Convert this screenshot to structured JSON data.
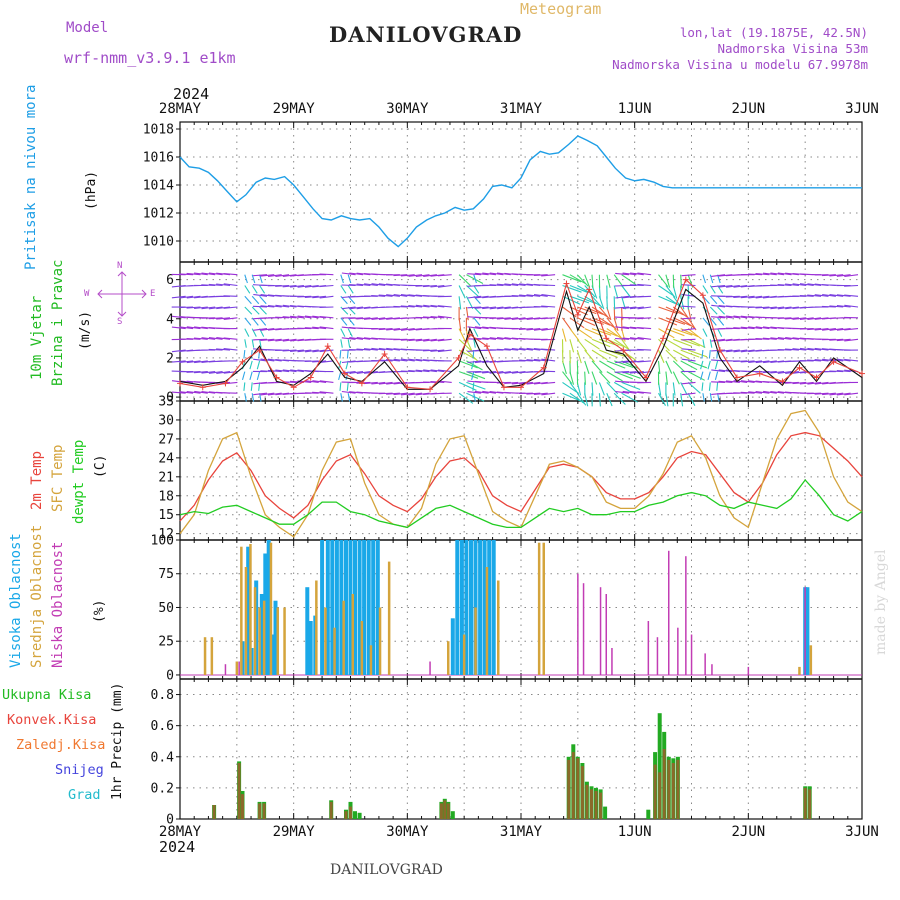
{
  "header": {
    "model_label": "Model",
    "model_name": "wrf-nmm_v3.9.1 e1km",
    "station": "DANILOVGRAD",
    "chart_kind": "Meteogram",
    "lonlat": "lon,lat (19.1875E, 42.5N)",
    "altitude": "Nadmorska Visina 53m",
    "model_altitude": "Nadmorska Visina u modelu 67.9978m",
    "year_top": "2024",
    "year_bottom": "2024",
    "footer_station": "DANILOVGRAD",
    "watermark": "made by Angel"
  },
  "colors": {
    "pressure": "#1e9ee6",
    "wind_label": "#22bb22",
    "temp2m": "#e8443c",
    "sfc": "#d4a43c",
    "dewpt": "#22cc22",
    "cloud_high": "#1aa8e8",
    "cloud_mid": "#d4a43c",
    "cloud_low": "#c23cb4",
    "rain_total": "#22bb22",
    "rain_conv": "#e8443c",
    "rain_frz": "#f07830",
    "snow": "#4444dd",
    "hail": "#22bbcc",
    "compass": "#b44cc8"
  },
  "dates": [
    "28MAY",
    "29MAY",
    "30MAY",
    "31MAY",
    "1JUN",
    "2JUN",
    "3JUN"
  ],
  "compass": {
    "n": "N",
    "s": "S",
    "w": "W",
    "e": "E"
  },
  "chart_data": [
    {
      "type": "line",
      "panel": "pressure",
      "ylabel_main": "Pritisak na nivou mora",
      "ylabel_unit": "(hPa)",
      "ylim": [
        1008.5,
        1018.5
      ],
      "yticks": [
        "1010",
        "1012",
        "1014",
        "1016",
        "1018"
      ],
      "grid": true,
      "x_days": [
        0,
        0.08,
        0.17,
        0.25,
        0.33,
        0.42,
        0.5,
        0.58,
        0.67,
        0.75,
        0.83,
        0.92,
        1.0,
        1.08,
        1.17,
        1.25,
        1.33,
        1.42,
        1.5,
        1.58,
        1.67,
        1.75,
        1.83,
        1.92,
        2.0,
        2.08,
        2.17,
        2.25,
        2.33,
        2.42,
        2.5,
        2.58,
        2.67,
        2.75,
        2.83,
        2.92,
        3.0,
        3.08,
        3.17,
        3.25,
        3.33,
        3.42,
        3.5,
        3.58,
        3.67,
        3.75,
        3.83,
        3.92,
        4.0,
        4.08,
        4.17,
        4.25,
        4.33,
        4.42,
        4.5,
        4.58,
        4.67,
        4.75,
        4.83,
        4.92,
        5.0,
        5.08,
        5.17,
        5.25,
        5.33,
        5.42,
        5.5,
        5.58,
        5.67,
        5.75,
        5.83,
        5.92,
        6.0
      ],
      "values": [
        1016.0,
        1015.3,
        1015.2,
        1014.9,
        1014.3,
        1013.5,
        1012.8,
        1013.3,
        1014.2,
        1014.5,
        1014.4,
        1014.6,
        1014.0,
        1013.2,
        1012.3,
        1011.6,
        1011.5,
        1011.8,
        1011.6,
        1011.5,
        1011.6,
        1011.0,
        1010.2,
        1009.6,
        1010.2,
        1011.0,
        1011.5,
        1011.8,
        1012.0,
        1012.4,
        1012.2,
        1012.3,
        1013.0,
        1013.9,
        1014.0,
        1013.8,
        1014.5,
        1015.8,
        1016.4,
        1016.2,
        1016.3,
        1016.9,
        1017.5,
        1017.2,
        1016.8,
        1016.0,
        1015.2,
        1014.5,
        1014.3,
        1014.4,
        1014.2,
        1013.9,
        1013.8,
        1013.8,
        1013.8,
        1013.8,
        1013.8,
        1013.8,
        1013.8,
        1013.8,
        1013.8,
        1013.8,
        1013.8,
        1013.8,
        1013.8,
        1013.8,
        1013.8,
        1013.8,
        1013.8,
        1013.8,
        1013.8,
        1013.8,
        1013.8
      ]
    },
    {
      "type": "line",
      "panel": "wind",
      "ylabel_main": "10m Vjetar",
      "ylabel_sub": "Brzina i Pravac",
      "ylabel_unit": "(m/s)",
      "ylim": [
        -0.2,
        6.9
      ],
      "yticks": [
        "0",
        "2",
        "4",
        "6"
      ],
      "grid": true,
      "series": [
        {
          "name": "speed",
          "x_days": [
            0,
            0.2,
            0.4,
            0.55,
            0.7,
            0.85,
            1.0,
            1.15,
            1.3,
            1.45,
            1.6,
            1.8,
            2.0,
            2.2,
            2.45,
            2.55,
            2.7,
            2.85,
            3.0,
            3.2,
            3.4,
            3.5,
            3.6,
            3.75,
            3.9,
            4.1,
            4.25,
            4.45,
            4.6,
            4.75,
            4.9,
            5.1,
            5.3,
            5.45,
            5.6,
            5.75,
            6.0
          ],
          "values": [
            0.8,
            0.6,
            0.8,
            1.5,
            2.6,
            0.8,
            0.6,
            1.2,
            2.2,
            1.0,
            0.8,
            1.8,
            0.4,
            0.4,
            1.6,
            3.5,
            1.6,
            0.5,
            0.6,
            1.2,
            5.4,
            3.4,
            4.6,
            2.4,
            2.2,
            0.8,
            2.5,
            5.5,
            4.8,
            2.0,
            0.8,
            1.6,
            0.6,
            1.8,
            0.8,
            2.0,
            1.0
          ]
        },
        {
          "name": "gust",
          "x_days": [
            0,
            0.2,
            0.4,
            0.55,
            0.7,
            0.85,
            1.0,
            1.15,
            1.3,
            1.45,
            1.6,
            1.8,
            2.0,
            2.2,
            2.45,
            2.55,
            2.7,
            2.85,
            3.0,
            3.2,
            3.4,
            3.5,
            3.6,
            3.75,
            3.9,
            4.1,
            4.25,
            4.45,
            4.6,
            4.75,
            4.9,
            5.1,
            5.3,
            5.45,
            5.6,
            5.75,
            6.0
          ],
          "values": [
            0.7,
            0.5,
            0.7,
            1.8,
            2.4,
            1.0,
            0.5,
            1.0,
            2.6,
            1.2,
            0.7,
            2.2,
            0.5,
            0.4,
            2.0,
            3.2,
            2.6,
            0.5,
            0.5,
            1.5,
            5.8,
            4.2,
            5.5,
            3.0,
            2.4,
            1.0,
            3.0,
            6.0,
            5.2,
            2.4,
            1.0,
            1.2,
            0.8,
            1.5,
            1.0,
            1.8,
            1.2
          ]
        }
      ]
    },
    {
      "type": "line",
      "panel": "temperature",
      "ylabel_2m": "2m Temp",
      "ylabel_sfc": "SFC Temp",
      "ylabel_dew": "dewpt Temp",
      "ylabel_unit": "(C)",
      "ylim": [
        11,
        33
      ],
      "yticks": [
        "12",
        "15",
        "18",
        "21",
        "24",
        "27",
        "30",
        "33"
      ],
      "grid": true,
      "x_days": [
        0,
        0.125,
        0.25,
        0.375,
        0.5,
        0.625,
        0.75,
        0.875,
        1.0,
        1.125,
        1.25,
        1.375,
        1.5,
        1.625,
        1.75,
        1.875,
        2.0,
        2.125,
        2.25,
        2.375,
        2.5,
        2.625,
        2.75,
        2.875,
        3.0,
        3.125,
        3.25,
        3.375,
        3.5,
        3.625,
        3.75,
        3.875,
        4.0,
        4.125,
        4.25,
        4.375,
        4.5,
        4.625,
        4.75,
        4.875,
        5.0,
        5.125,
        5.25,
        5.375,
        5.5,
        5.625,
        5.75,
        5.875,
        6.0
      ],
      "series": [
        {
          "name": "2m Temp",
          "values": [
            14.0,
            16.5,
            20.5,
            23.5,
            24.8,
            22.0,
            18.0,
            16.0,
            14.5,
            16.5,
            20.5,
            23.5,
            24.5,
            21.5,
            18.0,
            16.5,
            15.5,
            17.5,
            21.0,
            23.5,
            24.0,
            22.0,
            18.0,
            16.5,
            15.5,
            19.0,
            22.5,
            23.0,
            22.5,
            21.0,
            18.5,
            17.5,
            17.5,
            18.5,
            21.0,
            24.0,
            25.0,
            24.5,
            21.5,
            18.5,
            17.0,
            20.0,
            24.5,
            27.5,
            28.0,
            27.5,
            25.5,
            23.5,
            21.0
          ]
        },
        {
          "name": "SFC Temp",
          "values": [
            12.0,
            15.0,
            22.0,
            27.0,
            28.0,
            21.0,
            15.0,
            13.0,
            11.5,
            15.0,
            22.0,
            26.5,
            27.0,
            20.0,
            15.0,
            13.5,
            13.0,
            16.0,
            23.0,
            27.0,
            27.5,
            21.5,
            15.5,
            14.0,
            13.0,
            18.0,
            23.0,
            23.5,
            22.5,
            21.0,
            17.0,
            16.0,
            16.0,
            18.0,
            21.5,
            26.5,
            27.5,
            24.0,
            18.0,
            14.5,
            13.0,
            20.0,
            27.0,
            31.0,
            31.5,
            28.0,
            21.0,
            17.0,
            15.5
          ]
        },
        {
          "name": "dewpt Temp",
          "values": [
            15.0,
            15.5,
            15.2,
            16.2,
            16.5,
            15.5,
            14.5,
            13.5,
            13.5,
            15.0,
            17.0,
            17.0,
            15.5,
            15.0,
            14.0,
            13.5,
            13.0,
            14.5,
            16.0,
            16.5,
            15.5,
            14.5,
            13.5,
            13.0,
            13.0,
            14.5,
            16.0,
            15.5,
            16.0,
            15.0,
            15.0,
            15.5,
            15.5,
            16.5,
            17.0,
            18.0,
            18.5,
            18.0,
            16.5,
            16.0,
            17.0,
            16.5,
            16.0,
            17.5,
            20.5,
            18.0,
            15.0,
            14.0,
            15.5
          ]
        }
      ]
    },
    {
      "type": "bar",
      "panel": "clouds",
      "ylabel_high": "Visoka Oblacnost",
      "ylabel_mid": "Srednja Oblacnost",
      "ylabel_low": "Niska Oblacnost",
      "ylabel_unit": "(%)",
      "ylim": [
        -3,
        100
      ],
      "yticks": [
        "0",
        "25",
        "50",
        "75",
        "100"
      ],
      "grid": true,
      "series": [
        {
          "name": "Visoka",
          "x_days": [
            0.55,
            0.6,
            0.63,
            0.67,
            0.72,
            0.75,
            0.78,
            0.81,
            0.84,
            1.12,
            1.15,
            1.19,
            1.25,
            1.3,
            1.34,
            1.38,
            1.42,
            1.46,
            1.5,
            1.54,
            1.58,
            1.62,
            1.66,
            1.7,
            1.74,
            2.4,
            2.44,
            2.48,
            2.52,
            2.56,
            2.6,
            2.64,
            2.68,
            2.72,
            2.76,
            5.5,
            5.52
          ],
          "values": [
            25,
            95,
            20,
            70,
            60,
            90,
            100,
            30,
            55,
            65,
            40,
            44,
            100,
            100,
            100,
            100,
            100,
            100,
            100,
            100,
            100,
            100,
            100,
            100,
            100,
            42,
            100,
            100,
            100,
            100,
            100,
            100,
            100,
            100,
            100,
            65,
            65
          ]
        },
        {
          "name": "Srednja",
          "x_days": [
            0.22,
            0.28,
            0.5,
            0.54,
            0.58,
            0.62,
            0.66,
            0.7,
            0.74,
            0.8,
            0.86,
            0.92,
            1.2,
            1.28,
            1.36,
            1.44,
            1.52,
            1.6,
            1.68,
            1.76,
            1.84,
            2.36,
            2.5,
            2.6,
            2.7,
            2.8,
            3.16,
            3.2,
            5.45,
            5.55
          ],
          "values": [
            28,
            28,
            10,
            95,
            80,
            97,
            65,
            50,
            55,
            98,
            50,
            50,
            70,
            50,
            35,
            55,
            60,
            40,
            22,
            50,
            84,
            25,
            30,
            50,
            80,
            70,
            98,
            98,
            6,
            22
          ]
        },
        {
          "name": "Niska",
          "x_days": [
            0.4,
            0.52,
            2.2,
            3.5,
            3.55,
            3.7,
            3.75,
            3.8,
            4.12,
            4.2,
            4.3,
            4.38,
            4.45,
            4.5,
            4.62,
            4.68,
            5.0,
            5.5
          ],
          "values": [
            8,
            10,
            10,
            75,
            68,
            65,
            60,
            20,
            40,
            28,
            92,
            35,
            88,
            30,
            16,
            8,
            6,
            65
          ]
        }
      ]
    },
    {
      "type": "bar",
      "panel": "precipitation",
      "legend": [
        "Ukupna Kisa",
        "Konvek.Kisa",
        "Zaledj.Kisa",
        "Snijeg",
        "Grad"
      ],
      "ylabel_unit": "1hr Precip (mm)",
      "ylim": [
        0,
        0.9
      ],
      "yticks": [
        "0",
        "0.2",
        "0.4",
        "0.6",
        "0.8"
      ],
      "grid": true,
      "series": [
        {
          "name": "Ukupna Kisa",
          "x_days": [
            0.3,
            0.52,
            0.55,
            0.7,
            0.74,
            1.33,
            1.46,
            1.5,
            1.54,
            1.58,
            2.3,
            2.33,
            2.36,
            2.4,
            3.42,
            3.46,
            3.5,
            3.54,
            3.58,
            3.62,
            3.66,
            3.7,
            3.74,
            4.12,
            4.18,
            4.22,
            4.26,
            4.3,
            4.34,
            4.38,
            5.5,
            5.54
          ],
          "values": [
            0.09,
            0.37,
            0.18,
            0.11,
            0.11,
            0.12,
            0.06,
            0.11,
            0.05,
            0.04,
            0.11,
            0.13,
            0.11,
            0.05,
            0.4,
            0.48,
            0.4,
            0.36,
            0.24,
            0.21,
            0.2,
            0.19,
            0.08,
            0.06,
            0.43,
            0.68,
            0.56,
            0.4,
            0.39,
            0.4,
            0.21,
            0.21
          ]
        },
        {
          "name": "Konvek.Kisa",
          "x_days": [
            0.3,
            0.52,
            0.55,
            0.7,
            0.74,
            1.33,
            1.46,
            1.5,
            2.3,
            2.33,
            2.36,
            3.42,
            3.46,
            3.5,
            3.54,
            3.58,
            3.62,
            3.66,
            3.7,
            4.18,
            4.22,
            4.26,
            4.3,
            4.34,
            4.38,
            5.5,
            5.54
          ],
          "values": [
            0.09,
            0.36,
            0.16,
            0.1,
            0.1,
            0.11,
            0.05,
            0.08,
            0.1,
            0.12,
            0.1,
            0.38,
            0.43,
            0.39,
            0.34,
            0.22,
            0.19,
            0.18,
            0.17,
            0.35,
            0.3,
            0.45,
            0.38,
            0.36,
            0.38,
            0.2,
            0.19
          ]
        }
      ]
    }
  ]
}
